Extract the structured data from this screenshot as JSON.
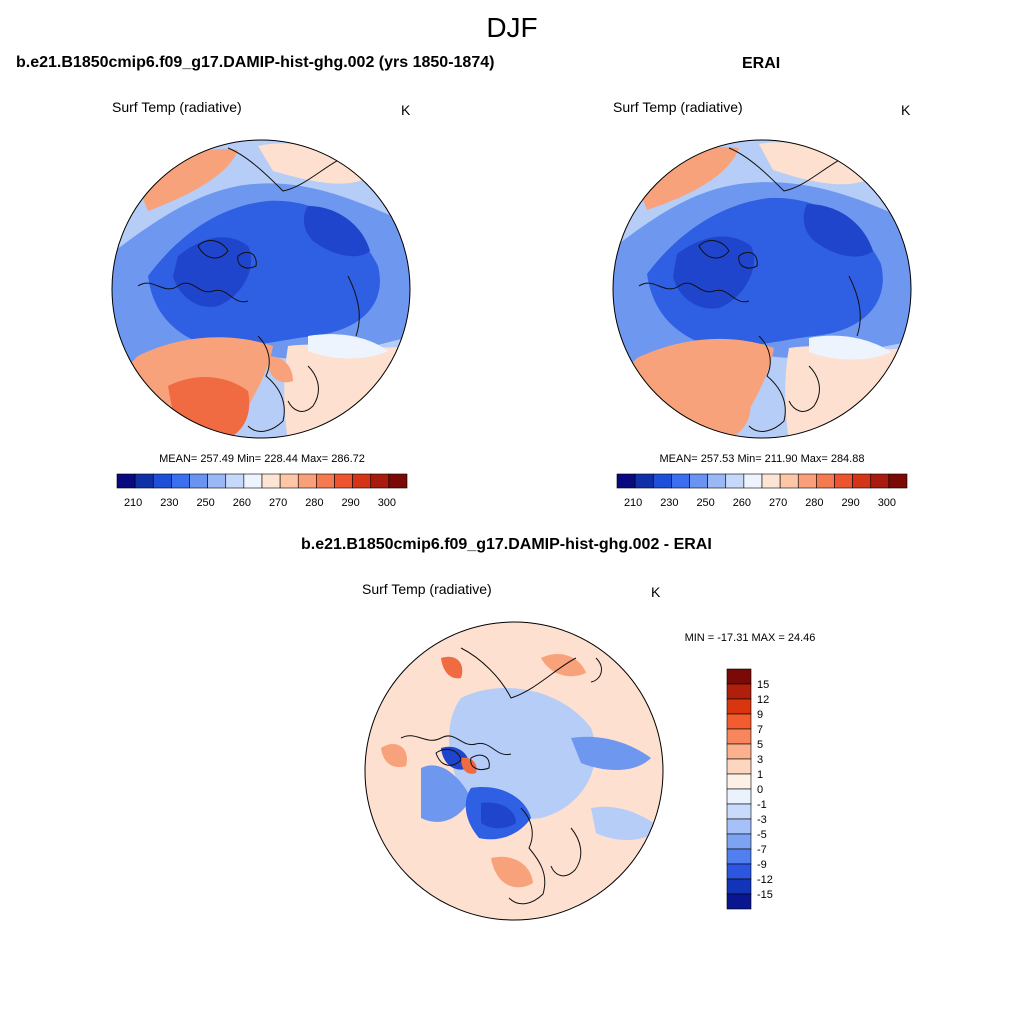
{
  "figure": {
    "title": "DJF"
  },
  "panels": [
    {
      "title": "b.e21.B1850cmip6.f09_g17.DAMIP-hist-ghg.002 (yrs 1850-1874)",
      "variable": "Surf Temp (radiative)",
      "units": "K",
      "stats": "MEAN= 257.49  Min= 228.44  Max= 286.72",
      "colorbar": {
        "tick_labels": [
          "210",
          "230",
          "250",
          "260",
          "270",
          "280",
          "290",
          "300"
        ],
        "colors": [
          "#0a0a80",
          "#1030a8",
          "#1f4fd8",
          "#3c6ef0",
          "#6a93f2",
          "#9bb8f6",
          "#c7d9fb",
          "#eef4fd",
          "#fde5d6",
          "#fcc6a7",
          "#f9a07a",
          "#f57a50",
          "#ec5530",
          "#d43518",
          "#a81b0e",
          "#7a0a05"
        ]
      }
    },
    {
      "title": "ERAI",
      "variable": "Surf Temp (radiative)",
      "units": "K",
      "stats": "MEAN= 257.53  Min= 211.90  Max= 284.88",
      "colorbar": {
        "tick_labels": [
          "210",
          "230",
          "250",
          "260",
          "270",
          "280",
          "290",
          "300"
        ],
        "colors": [
          "#0a0a80",
          "#1030a8",
          "#1f4fd8",
          "#3c6ef0",
          "#6a93f2",
          "#9bb8f6",
          "#c7d9fb",
          "#eef4fd",
          "#fde5d6",
          "#fcc6a7",
          "#f9a07a",
          "#f57a50",
          "#ec5530",
          "#d43518",
          "#a81b0e",
          "#7a0a05"
        ]
      }
    },
    {
      "title": "b.e21.B1850cmip6.f09_g17.DAMIP-hist-ghg.002 - ERAI",
      "variable": "Surf Temp (radiative)",
      "units": "K",
      "stats": "MIN = -17.31 MAX =  24.46",
      "colorbar": {
        "tick_labels": [
          "15",
          "12",
          "9",
          "7",
          "5",
          "3",
          "1",
          "0",
          "-1",
          "-3",
          "-5",
          "-7",
          "-9",
          "-12",
          "-15"
        ],
        "colors": [
          "#7a0a05",
          "#b01f0c",
          "#d9360f",
          "#f25c2e",
          "#f8865c",
          "#fbb08e",
          "#fdd6bf",
          "#fdf0e6",
          "#eaf2fd",
          "#c9dbfa",
          "#a6c1f7",
          "#7da3f3",
          "#517ff0",
          "#2c56e0",
          "#1234b8",
          "#0a1690"
        ]
      }
    }
  ],
  "palette": {
    "cold": "#2f5fe3",
    "cold_deep": "#1f45cc",
    "cool": "#6e98f0",
    "cool_light": "#b5cdf7",
    "neutral": "#eef4fd",
    "warm_light": "#fde0cf",
    "warm": "#f8a27c",
    "hot": "#f06a42",
    "coast": "#111111"
  }
}
